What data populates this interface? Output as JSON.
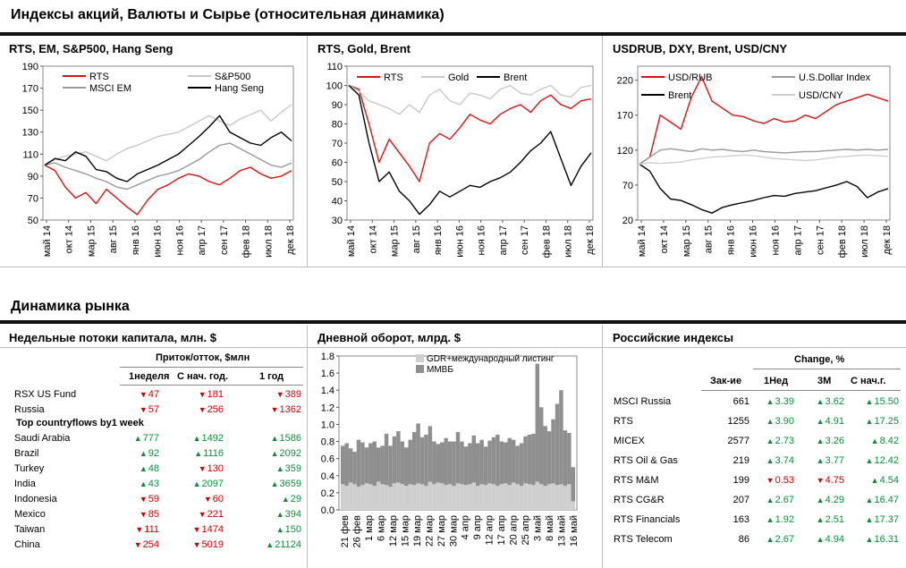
{
  "header": {
    "title": "Индексы акций, Валюты и  Сырье (относительная динамика)"
  },
  "section2": {
    "title": "Динамика рынка"
  },
  "colors": {
    "rts": "#e01010",
    "msci": "#999999",
    "sp": "#c8c8c8",
    "black": "#000000",
    "gdr": "#cfcfcf",
    "mmvb": "#8f8f8f"
  },
  "chart_data": [
    {
      "type": "line",
      "title": "RTS, EM, S&P500, Hang Seng",
      "ylim": [
        50,
        190
      ],
      "yticks": [
        50,
        70,
        90,
        110,
        130,
        150,
        170,
        190
      ],
      "xticks": [
        "май 14",
        "окт 14",
        "мар 15",
        "авг 15",
        "янв 16",
        "июн 16",
        "ноя 16",
        "апр 17",
        "сен 17",
        "фев 18",
        "июл 18",
        "дек 18"
      ],
      "series": [
        {
          "name": "RTS",
          "color": "#e01010",
          "values": [
            100,
            95,
            80,
            70,
            75,
            65,
            78,
            70,
            62,
            55,
            68,
            78,
            82,
            88,
            92,
            90,
            85,
            82,
            88,
            95,
            98,
            92,
            88,
            90,
            95
          ]
        },
        {
          "name": "S&P500",
          "color": "#c8c8c8",
          "values": [
            100,
            105,
            108,
            110,
            112,
            108,
            104,
            110,
            115,
            118,
            122,
            126,
            128,
            130,
            135,
            140,
            145,
            140,
            136,
            142,
            146,
            150,
            140,
            148,
            155
          ]
        },
        {
          "name": "MSCI EM",
          "color": "#999999",
          "values": [
            100,
            102,
            98,
            95,
            92,
            88,
            85,
            80,
            78,
            82,
            86,
            90,
            92,
            95,
            100,
            105,
            112,
            118,
            120,
            115,
            110,
            105,
            100,
            98,
            102
          ]
        },
        {
          "name": "Hang Seng",
          "color": "#000000",
          "values": [
            100,
            106,
            104,
            112,
            108,
            96,
            94,
            88,
            85,
            92,
            96,
            100,
            105,
            110,
            118,
            126,
            135,
            145,
            130,
            125,
            120,
            118,
            125,
            130,
            122
          ]
        }
      ]
    },
    {
      "type": "line",
      "title": "RTS, Gold, Brent",
      "ylim": [
        30,
        110
      ],
      "yticks": [
        30,
        40,
        50,
        60,
        70,
        80,
        90,
        100,
        110
      ],
      "xticks": [
        "май 14",
        "окт 14",
        "мар 15",
        "авг 15",
        "янв 16",
        "июн 16",
        "ноя 16",
        "апр 17",
        "сен 17",
        "фев 18",
        "июл 18",
        "дек 18"
      ],
      "series": [
        {
          "name": "RTS",
          "color": "#e01010",
          "values": [
            100,
            98,
            80,
            60,
            72,
            65,
            58,
            50,
            70,
            75,
            72,
            78,
            85,
            82,
            80,
            85,
            88,
            90,
            86,
            92,
            95,
            90,
            88,
            92,
            93
          ]
        },
        {
          "name": "Gold",
          "color": "#c8c8c8",
          "values": [
            100,
            97,
            92,
            90,
            88,
            85,
            90,
            86,
            95,
            98,
            92,
            90,
            96,
            95,
            93,
            98,
            100,
            96,
            95,
            98,
            100,
            95,
            94,
            99,
            100
          ]
        },
        {
          "name": "Brent",
          "color": "#000000",
          "values": [
            100,
            95,
            70,
            50,
            55,
            45,
            40,
            33,
            38,
            45,
            42,
            45,
            48,
            47,
            50,
            52,
            55,
            60,
            66,
            70,
            76,
            62,
            48,
            58,
            65
          ]
        }
      ]
    },
    {
      "type": "line",
      "title": "USDRUB, DXY, Brent, USD/CNY",
      "ylim": [
        20,
        240
      ],
      "yticks": [
        20,
        70,
        120,
        170,
        220
      ],
      "xticks": [
        "май 14",
        "окт 14",
        "мар 15",
        "авг 15",
        "янв 16",
        "июн 16",
        "ноя 16",
        "апр 17",
        "сен 17",
        "фев 18",
        "июл 18",
        "дек 18"
      ],
      "series": [
        {
          "name": "USD/RUB",
          "color": "#e01010",
          "values": [
            100,
            110,
            170,
            160,
            150,
            195,
            225,
            190,
            180,
            170,
            168,
            162,
            158,
            165,
            160,
            162,
            170,
            165,
            175,
            185,
            190,
            195,
            200,
            195,
            190
          ]
        },
        {
          "name": "U.S.Dollar Index",
          "color": "#999999",
          "values": [
            100,
            110,
            120,
            122,
            120,
            118,
            122,
            120,
            121,
            119,
            118,
            120,
            118,
            117,
            116,
            117,
            118,
            118,
            119,
            120,
            121,
            120,
            121,
            120,
            121
          ]
        },
        {
          "name": "Brent",
          "color": "#000000",
          "values": [
            100,
            90,
            65,
            50,
            48,
            42,
            35,
            30,
            38,
            42,
            45,
            48,
            52,
            55,
            54,
            58,
            60,
            62,
            66,
            70,
            75,
            68,
            52,
            60,
            65
          ]
        },
        {
          "name": "USD/CNY",
          "color": "#cfcfcf",
          "values": [
            100,
            102,
            101,
            102,
            103,
            106,
            108,
            110,
            111,
            112,
            113,
            112,
            110,
            108,
            107,
            106,
            105,
            106,
            108,
            110,
            111,
            112,
            113,
            112,
            111
          ]
        }
      ]
    },
    {
      "type": "bar",
      "title": "Дневной оборот, млрд. $",
      "ylim": [
        0,
        1.8
      ],
      "yticks": [
        "0.0",
        "0.2",
        "0.4",
        "0.6",
        "0.8",
        "1.0",
        "1.2",
        "1.4",
        "1.6",
        "1.8"
      ],
      "xticks": [
        "21 фев",
        "26 фев",
        "1 мар",
        "6 мар",
        "12 мар",
        "15 мар",
        "19 мар",
        "22 мар",
        "27 мар",
        "30 мар",
        "4 апр",
        "9 апр",
        "12 апр",
        "17 апр",
        "20 апр",
        "25 апр",
        "3 май",
        "8 май",
        "13 май",
        "16 май"
      ],
      "series": [
        {
          "name": "GDR+международный  листинг",
          "color": "#cfcfcf",
          "values": [
            0.3,
            0.28,
            0.32,
            0.3,
            0.27,
            0.29,
            0.31,
            0.3,
            0.28,
            0.33,
            0.3,
            0.29,
            0.27,
            0.31,
            0.32,
            0.3,
            0.28,
            0.3,
            0.29,
            0.31,
            0.3,
            0.28,
            0.33,
            0.3,
            0.32,
            0.31,
            0.29,
            0.3,
            0.28,
            0.31,
            0.3,
            0.29,
            0.3,
            0.32,
            0.28,
            0.3,
            0.29,
            0.31,
            0.3,
            0.28,
            0.3,
            0.31,
            0.29,
            0.32,
            0.3,
            0.28,
            0.31,
            0.3,
            0.29,
            0.33,
            0.3,
            0.28,
            0.3,
            0.31,
            0.29,
            0.3,
            0.28,
            0.3,
            0.1
          ]
        },
        {
          "name": "ММВБ",
          "color": "#8f8f8f",
          "values": [
            0.45,
            0.5,
            0.4,
            0.38,
            0.55,
            0.5,
            0.42,
            0.48,
            0.52,
            0.4,
            0.45,
            0.6,
            0.48,
            0.55,
            0.6,
            0.5,
            0.45,
            0.52,
            0.62,
            0.7,
            0.55,
            0.6,
            0.65,
            0.5,
            0.45,
            0.48,
            0.55,
            0.5,
            0.52,
            0.6,
            0.5,
            0.45,
            0.48,
            0.55,
            0.5,
            0.52,
            0.45,
            0.5,
            0.55,
            0.6,
            0.5,
            0.48,
            0.55,
            0.5,
            0.45,
            0.5,
            0.55,
            0.58,
            0.6,
            1.38,
            0.9,
            0.7,
            0.62,
            0.75,
            0.95,
            1.1,
            0.65,
            0.6,
            0.4
          ]
        }
      ]
    }
  ],
  "flows": {
    "title": "Недельные потоки капитала, млн. $",
    "group_header": "Приток/отток, $млн",
    "cols": [
      "1неделя",
      "С нач. год.",
      "1 год"
    ],
    "subhead": "Top countryflows by1 week",
    "rows1": [
      {
        "name": "RSX US Fund",
        "v": [
          "47",
          "181",
          "389"
        ],
        "d": [
          "dn",
          "dn",
          "dn"
        ]
      },
      {
        "name": "Russia",
        "v": [
          "57",
          "256",
          "1362"
        ],
        "d": [
          "dn",
          "dn",
          "dn"
        ]
      }
    ],
    "rows2": [
      {
        "name": "Saudi Arabia",
        "v": [
          "777",
          "1492",
          "1586"
        ],
        "d": [
          "up",
          "up",
          "up"
        ]
      },
      {
        "name": "Brazil",
        "v": [
          "92",
          "1116",
          "2092"
        ],
        "d": [
          "up",
          "up",
          "up"
        ]
      },
      {
        "name": "Turkey",
        "v": [
          "48",
          "130",
          "359"
        ],
        "d": [
          "up",
          "dn",
          "up"
        ]
      },
      {
        "name": "India",
        "v": [
          "43",
          "2097",
          "3659"
        ],
        "d": [
          "up",
          "up",
          "up"
        ]
      },
      {
        "name": "Indonesia",
        "v": [
          "59",
          "60",
          "29"
        ],
        "d": [
          "dn",
          "dn",
          "up"
        ]
      },
      {
        "name": "Mexico",
        "v": [
          "85",
          "221",
          "394"
        ],
        "d": [
          "dn",
          "dn",
          "up"
        ]
      },
      {
        "name": "Taiwan",
        "v": [
          "111",
          "1474",
          "150"
        ],
        "d": [
          "dn",
          "dn",
          "up"
        ]
      },
      {
        "name": "China",
        "v": [
          "254",
          "5019",
          "21124"
        ],
        "d": [
          "dn",
          "dn",
          "up"
        ]
      }
    ]
  },
  "indices": {
    "title": "Российские индексы",
    "change_header": "Change, %",
    "cols": [
      "Зак-ие",
      "1Нед",
      "3M",
      "С нач.г."
    ],
    "rows": [
      {
        "name": "MSCI Russia",
        "close": "661",
        "v": [
          "3.39",
          "3.62",
          "15.50"
        ],
        "d": [
          "up",
          "up",
          "up"
        ]
      },
      {
        "name": "RTS",
        "close": "1255",
        "v": [
          "3.90",
          "4.91",
          "17.25"
        ],
        "d": [
          "up",
          "up",
          "up"
        ]
      },
      {
        "name": "MICEX",
        "close": "2577",
        "v": [
          "2.73",
          "3.26",
          "8.42"
        ],
        "d": [
          "up",
          "up",
          "up"
        ]
      },
      {
        "name": "RTS Oil & Gas",
        "close": "219",
        "v": [
          "3.74",
          "3.77",
          "12.42"
        ],
        "d": [
          "up",
          "up",
          "up"
        ]
      },
      {
        "name": "RTS M&M",
        "close": "199",
        "v": [
          "0.53",
          "4.75",
          "4.54"
        ],
        "d": [
          "dn",
          "dn",
          "up"
        ]
      },
      {
        "name": "RTS CG&R",
        "close": "207",
        "v": [
          "2.67",
          "4.29",
          "16.47"
        ],
        "d": [
          "up",
          "up",
          "up"
        ]
      },
      {
        "name": "RTS Financials",
        "close": "163",
        "v": [
          "1.92",
          "2.51",
          "17.37"
        ],
        "d": [
          "up",
          "up",
          "up"
        ]
      },
      {
        "name": "RTS Telecom",
        "close": "86",
        "v": [
          "2.67",
          "4.94",
          "16.31"
        ],
        "d": [
          "up",
          "up",
          "up"
        ]
      }
    ]
  }
}
